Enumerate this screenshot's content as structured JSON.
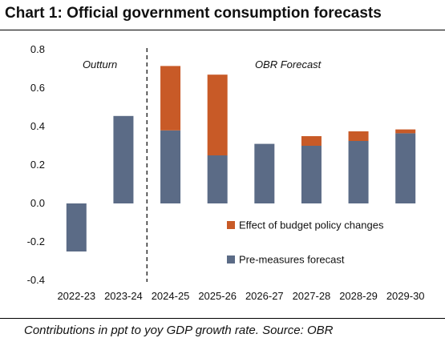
{
  "title": "Chart 1: Official government consumption forecasts",
  "caption": "Contributions in ppt to yoy GDP growth rate. Source: OBR",
  "colors": {
    "pre_measures": "#5b6b86",
    "budget_effect": "#c85a27"
  },
  "chart_data": {
    "type": "bar",
    "stacked": true,
    "categories": [
      "2022-23",
      "2023-24",
      "2024-25",
      "2025-26",
      "2026-27",
      "2027-28",
      "2028-29",
      "2029-30"
    ],
    "series": [
      {
        "name": "Pre-measures forecast",
        "values": [
          -0.25,
          0.455,
          0.38,
          0.25,
          0.31,
          0.3,
          0.325,
          0.365
        ]
      },
      {
        "name": "Effect of budget policy changes",
        "values": [
          0,
          0,
          0.335,
          0.42,
          0,
          0.05,
          0.05,
          0.02
        ]
      }
    ],
    "ylim": [
      -0.4,
      0.8
    ],
    "yticks": [
      "-0.4",
      "-0.2",
      "0.0",
      "0.2",
      "0.4",
      "0.6",
      "0.8"
    ],
    "annotations": [
      "Outturn",
      "OBR Forecast"
    ],
    "legend_position": "inside-bottom-right",
    "grid": false
  }
}
